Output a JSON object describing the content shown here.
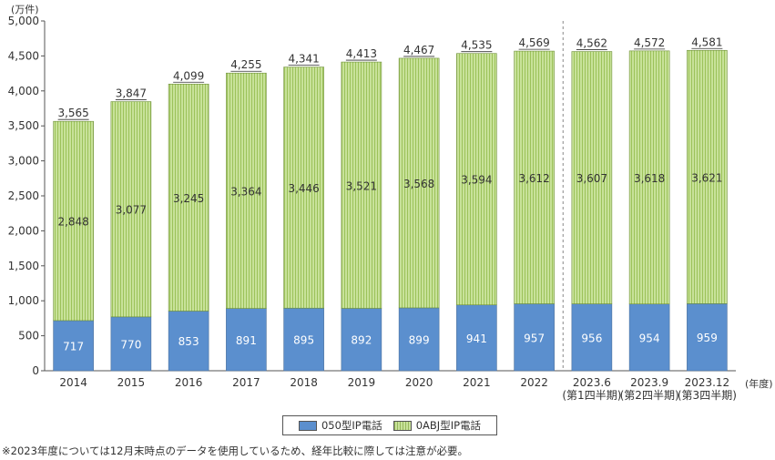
{
  "chart_data": {
    "type": "bar",
    "stacked": true,
    "unit_label": "(万件)",
    "x_unit_label": "(年度)",
    "categories": [
      "2014",
      "2015",
      "2016",
      "2017",
      "2018",
      "2019",
      "2020",
      "2021",
      "2022",
      "2023.6",
      "2023.9",
      "2023.12"
    ],
    "category_sublabels": [
      "",
      "",
      "",
      "",
      "",
      "",
      "",
      "",
      "",
      "(第1四半期)",
      "(第2四半期)",
      "(第3四半期)"
    ],
    "series": [
      {
        "name": "050型IP電話",
        "color": "#5b8fce",
        "values": [
          717,
          770,
          853,
          891,
          895,
          892,
          899,
          941,
          957,
          956,
          954,
          959
        ]
      },
      {
        "name": "0ABJ型IP電話",
        "color": "#c8e29a",
        "values": [
          2848,
          3077,
          3245,
          3364,
          3446,
          3521,
          3568,
          3594,
          3612,
          3607,
          3618,
          3621
        ]
      }
    ],
    "totals": [
      3565,
      3847,
      4099,
      4255,
      4341,
      4413,
      4467,
      4535,
      4569,
      4562,
      4572,
      4581
    ],
    "ylim": [
      0,
      5000
    ],
    "yticks": [
      0,
      500,
      1000,
      1500,
      2000,
      2500,
      3000,
      3500,
      4000,
      4500,
      5000
    ],
    "grid": false,
    "legend_position": "bottom-center"
  },
  "note": "※2023年度については12月末時点のデータを使用しているため、経年比較に際しては注意が必要。"
}
